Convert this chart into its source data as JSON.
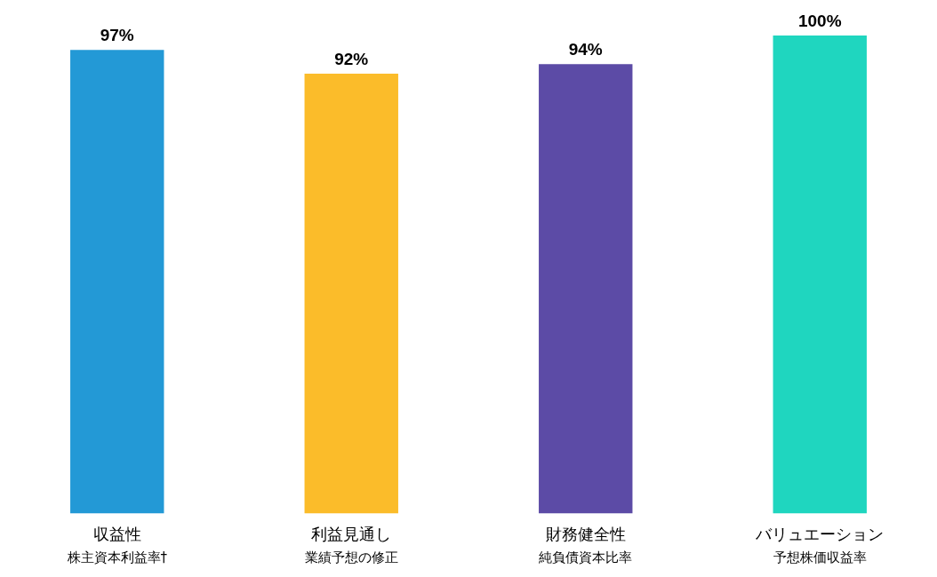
{
  "chart_data": {
    "type": "bar",
    "categories": [
      "収益性",
      "利益見通し",
      "財務健全性",
      "バリュエーション"
    ],
    "values": [
      97,
      92,
      94,
      100
    ],
    "colors": [
      "#2399d6",
      "#fbbc2a",
      "#5c4ba6",
      "#1fd6bf"
    ],
    "value_labels": [
      "97%",
      "92%",
      "94%",
      "100%"
    ],
    "annotations": [
      "株主資本利益率†",
      "業績予想の修正",
      "純負債資本比率",
      "予想株価収益率"
    ]
  }
}
